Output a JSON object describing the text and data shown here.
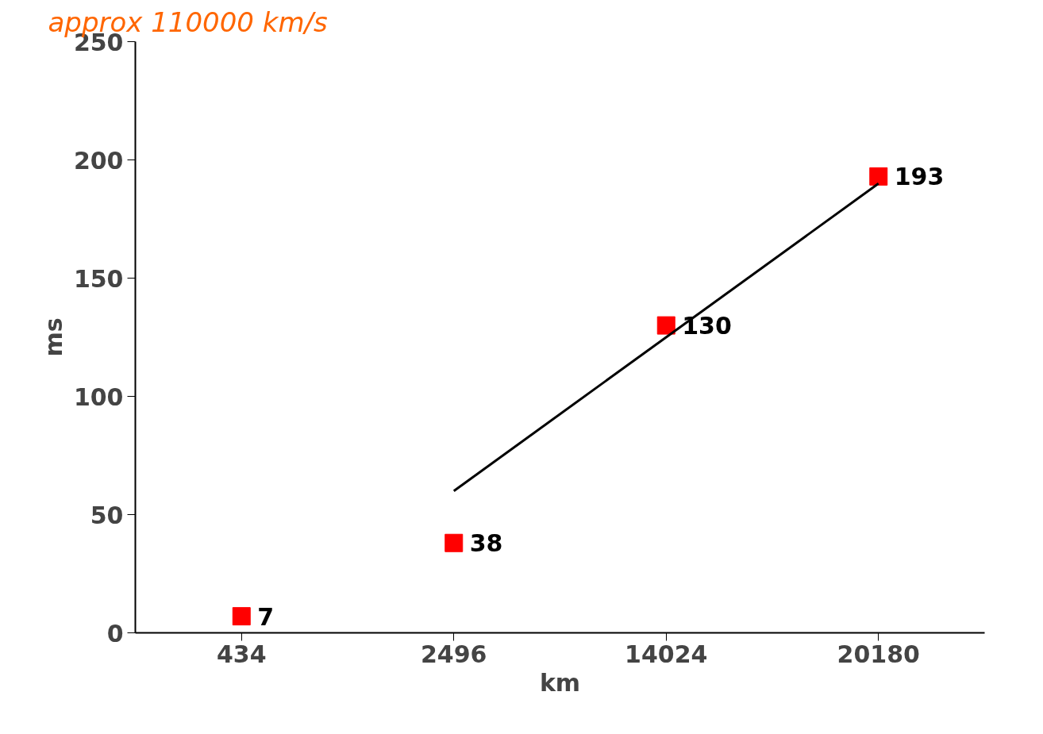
{
  "chart_data": {
    "type": "scatter",
    "xlabel": "km",
    "ylabel": "ms",
    "categories": [
      "434",
      "2496",
      "14024",
      "20180"
    ],
    "series": [
      {
        "color": "#ff0000",
        "values": [
          7,
          38,
          130,
          193
        ],
        "marker": "square",
        "data_labels": true
      },
      {
        "type": "line",
        "color": "#000000",
        "values": [
          null,
          60,
          125,
          190
        ],
        "line_style": "solid"
      }
    ],
    "ylim": [
      0,
      250
    ],
    "yticks": [
      0,
      50,
      100,
      150,
      200,
      250
    ],
    "grid": false,
    "annotations": [
      "approx 110000 km/s"
    ]
  }
}
